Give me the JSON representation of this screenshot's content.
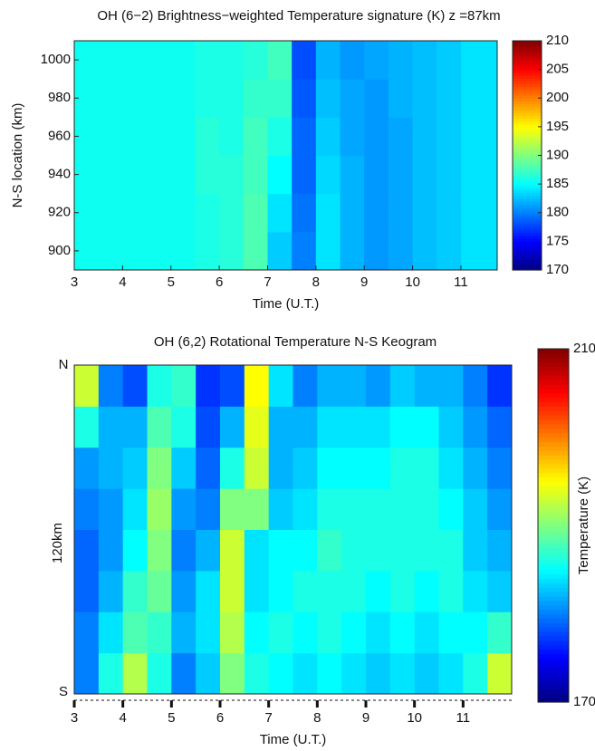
{
  "chart_data": [
    {
      "type": "heatmap",
      "title": "OH (6−2) Brightness−weighted Temperature signature (K) z =87km",
      "xlabel": "Time (U.T.)",
      "ylabel": "N-S location (km)",
      "xlim": [
        3,
        11.75
      ],
      "xticks": [
        3,
        4,
        5,
        6,
        7,
        8,
        9,
        10,
        11
      ],
      "ylim": [
        890,
        1010
      ],
      "yticks": [
        900,
        920,
        940,
        960,
        980,
        1000
      ],
      "clim": [
        170,
        210
      ],
      "cticks": [
        170,
        175,
        180,
        185,
        190,
        195,
        200,
        205,
        210
      ],
      "colormap": "jet",
      "x": [
        3.25,
        3.75,
        4.25,
        4.75,
        5.25,
        5.75,
        6.25,
        6.75,
        7.25,
        7.75,
        8.25,
        8.75,
        9.25,
        9.75,
        10.25,
        10.75,
        11.25
      ],
      "y": [
        900,
        920,
        940,
        960,
        980,
        1000
      ],
      "z": [
        [
          185.5,
          185.5,
          185.5,
          185.5,
          185.5,
          186,
          186.5,
          188,
          183,
          180,
          184,
          182,
          181,
          181.5,
          182.5,
          183,
          184
        ],
        [
          185.5,
          185.5,
          185.5,
          185.5,
          185.5,
          186,
          186.5,
          188,
          184,
          179.5,
          184,
          182,
          181,
          181.5,
          182.5,
          183,
          184
        ],
        [
          185.5,
          185.5,
          185.5,
          185.5,
          185.5,
          186.5,
          186.5,
          187.5,
          185,
          179,
          183.5,
          182,
          181,
          181.5,
          182.5,
          183,
          184
        ],
        [
          185.5,
          185.5,
          185.5,
          185.5,
          185.5,
          186.5,
          186,
          187.5,
          186,
          179,
          183,
          181.5,
          181,
          181.5,
          182.5,
          183,
          184
        ],
        [
          185.5,
          185.5,
          185.5,
          185.5,
          185.5,
          186,
          186,
          187,
          187,
          178.5,
          182.5,
          181.5,
          181,
          182,
          182.5,
          183,
          184
        ],
        [
          185.5,
          185.5,
          185.5,
          185.5,
          185.5,
          186,
          186,
          186.5,
          187.5,
          178,
          182,
          181,
          181.5,
          182,
          182.5,
          183,
          184
        ]
      ]
    },
    {
      "type": "heatmap",
      "title": "OH (6,2) Rotational Temperature N-S Keogram",
      "xlabel": "Time (U.T.)",
      "ylabel": "120km",
      "y_top_label": "N",
      "y_bottom_label": "S",
      "colorbar_label": "Temperature (K)",
      "xlim": [
        3,
        12
      ],
      "xticks": [
        3,
        4,
        5,
        6,
        7,
        8,
        9,
        10,
        11
      ],
      "clim": [
        170,
        210
      ],
      "cticks": [
        170,
        210
      ],
      "colormap": "jet",
      "x": [
        3.25,
        3.75,
        4.25,
        4.75,
        5.25,
        5.75,
        6.25,
        6.75,
        7.25,
        7.75,
        8.25,
        8.75,
        9.25,
        9.75,
        10.25,
        10.75,
        11.25,
        11.75
      ],
      "z": [
        [
          180,
          186,
          192,
          186,
          180,
          183,
          190,
          186,
          185,
          184,
          185,
          184,
          183,
          184,
          183,
          184,
          186,
          193
        ],
        [
          180,
          184,
          188,
          187,
          182,
          184,
          192,
          185,
          186,
          185,
          186,
          185,
          184,
          185,
          184,
          185,
          185,
          187
        ],
        [
          179,
          182,
          187,
          189,
          181,
          184,
          193,
          184,
          185,
          186,
          186,
          186,
          185,
          186,
          185,
          186,
          184,
          183
        ],
        [
          179,
          181,
          185,
          190,
          180,
          182,
          193,
          184,
          185,
          185,
          187,
          186,
          186,
          186,
          186,
          186,
          183,
          182
        ],
        [
          180,
          181,
          184,
          191,
          181,
          180,
          190,
          190,
          183,
          184,
          186,
          186,
          186,
          186,
          186,
          185,
          183,
          181
        ],
        [
          181,
          182,
          183,
          190,
          183,
          179,
          186,
          193,
          182,
          183,
          185,
          185,
          185,
          186,
          186,
          184,
          182,
          180
        ],
        [
          186,
          182,
          182,
          188,
          186,
          178,
          182,
          194,
          182,
          182,
          184,
          184,
          184,
          185,
          185,
          183,
          181,
          179
        ],
        [
          193,
          180,
          178,
          186,
          187,
          177,
          178,
          195,
          184,
          180,
          182,
          182,
          181,
          183,
          182,
          182,
          180,
          177
        ]
      ]
    }
  ]
}
